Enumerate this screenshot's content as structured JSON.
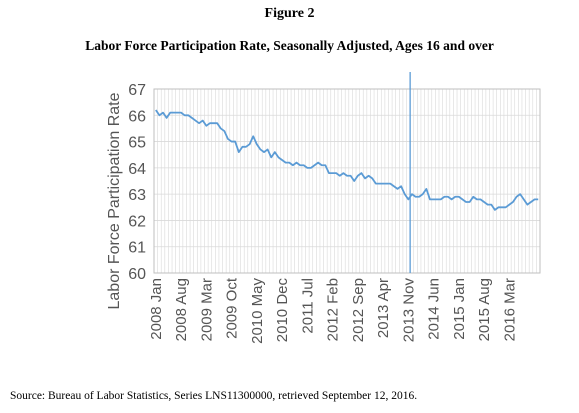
{
  "figure_label": "Figure 2",
  "title": "Labor Force Participation Rate, Seasonally Adjusted, Ages 16 and over",
  "source": "Source:  Bureau of Labor Statistics, Series LNS11300000, retrieved September 12, 2016.",
  "colors": {
    "line": "#5b9bd5",
    "marker": "#5b9bd5",
    "grid": "#d9d9d9",
    "axis_text": "#595959"
  },
  "chart_data": {
    "type": "line",
    "title": "",
    "xlabel": "",
    "ylabel": "Labor Force Participation Rate",
    "ylim": [
      60,
      67
    ],
    "yticks": [
      60,
      61,
      62,
      63,
      64,
      65,
      66,
      67
    ],
    "x_start": "2008 Jan",
    "x_tick_labels": [
      "2008 Jan",
      "2008 Aug",
      "2009 Mar",
      "2009 Oct",
      "2010 May",
      "2010 Dec",
      "2011 Jul",
      "2012 Feb",
      "2012 Sep",
      "2013 Apr",
      "2013 Nov",
      "2014 Jun",
      "2015 Jan",
      "2015 Aug",
      "2016 Mar"
    ],
    "vertical_marker": "2013 Dec",
    "grid": true,
    "legend": "none",
    "series": [
      {
        "values": [
          66.2,
          66.0,
          66.1,
          65.9,
          66.1,
          66.1,
          66.1,
          66.1,
          66.0,
          66.0,
          65.9,
          65.8,
          65.7,
          65.8,
          65.6,
          65.7,
          65.7,
          65.7,
          65.5,
          65.4,
          65.1,
          65.0,
          65.0,
          64.6,
          64.8,
          64.8,
          64.9,
          65.2,
          64.9,
          64.7,
          64.6,
          64.7,
          64.4,
          64.6,
          64.4,
          64.3,
          64.2,
          64.2,
          64.1,
          64.2,
          64.1,
          64.1,
          64.0,
          64.0,
          64.1,
          64.2,
          64.1,
          64.1,
          63.8,
          63.8,
          63.8,
          63.7,
          63.8,
          63.7,
          63.7,
          63.5,
          63.7,
          63.8,
          63.6,
          63.7,
          63.6,
          63.4,
          63.4,
          63.4,
          63.4,
          63.4,
          63.3,
          63.2,
          63.3,
          63.0,
          62.8,
          63.0,
          62.9,
          62.9,
          63.0,
          63.2,
          62.8,
          62.8,
          62.8,
          62.8,
          62.9,
          62.9,
          62.8,
          62.9,
          62.9,
          62.8,
          62.7,
          62.7,
          62.9,
          62.8,
          62.8,
          62.7,
          62.6,
          62.6,
          62.4,
          62.5,
          62.5,
          62.5,
          62.6,
          62.7,
          62.9,
          63.0,
          62.8,
          62.6,
          62.7,
          62.8,
          62.8
        ]
      }
    ]
  }
}
